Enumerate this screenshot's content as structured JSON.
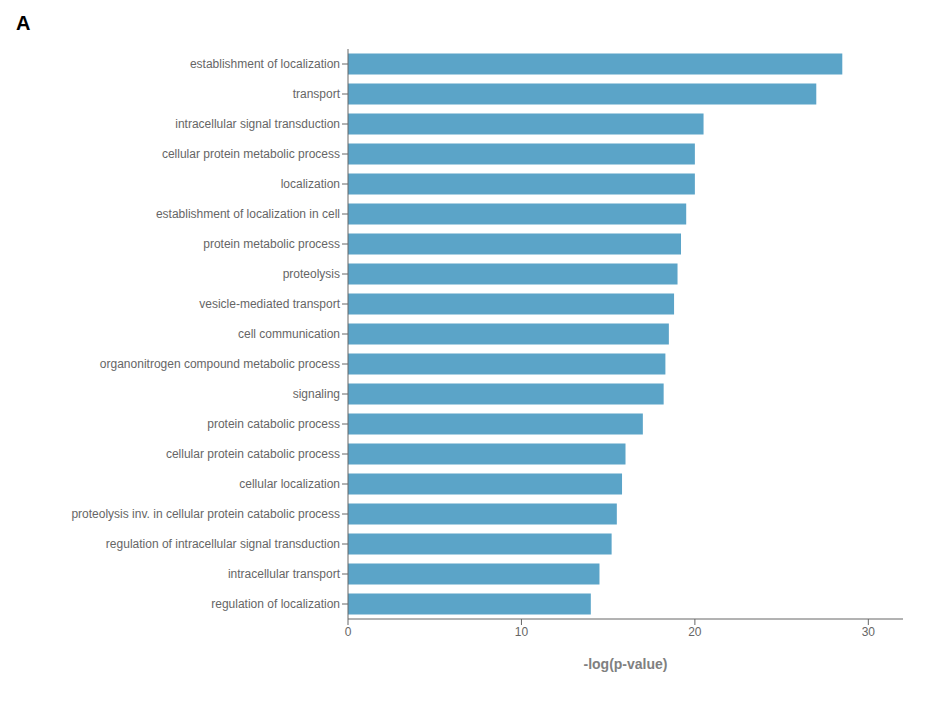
{
  "chart_data": {
    "type": "bar",
    "title": "A",
    "orientation": "horizontal",
    "categories": [
      "establishment of localization",
      "transport",
      "intracellular signal transduction",
      "cellular protein metabolic process",
      "localization",
      "establishment of localization in cell",
      "protein metabolic process",
      "proteolysis",
      "vesicle-mediated transport",
      "cell communication",
      "organonitrogen compound metabolic process",
      "signaling",
      "protein catabolic process",
      "cellular protein catabolic process",
      "cellular localization",
      "proteolysis inv. in cellular protein catabolic process",
      "regulation of intracellular signal transduction",
      "intracellular transport",
      "regulation of localization"
    ],
    "values": [
      28.5,
      27.0,
      20.5,
      20.0,
      20.0,
      19.5,
      19.2,
      19.0,
      18.8,
      18.5,
      18.3,
      18.2,
      17.0,
      16.0,
      15.8,
      15.5,
      15.2,
      14.5,
      14.0
    ],
    "color": "#5BA4C8",
    "xlabel": "-log(p-value)",
    "xlim": [
      0,
      32
    ],
    "xticks": [
      0,
      10,
      20,
      30
    ]
  }
}
